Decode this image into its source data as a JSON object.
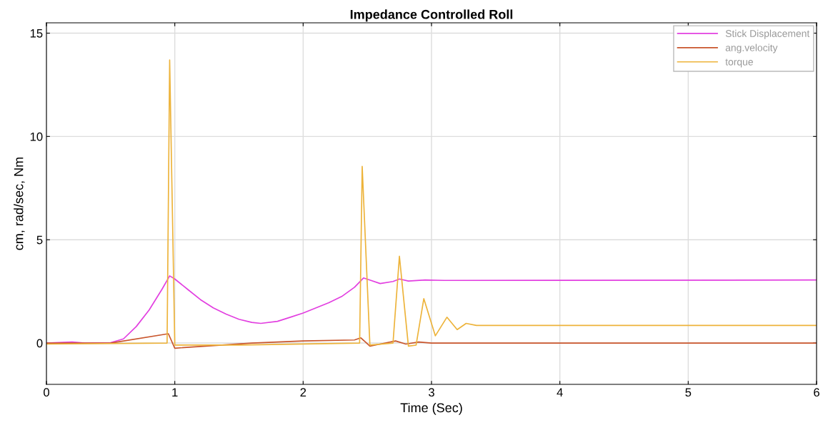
{
  "chart_data": {
    "type": "line",
    "title": "Impedance Controlled Roll",
    "xlabel": "Time (Sec)",
    "ylabel": "cm, rad/sec, Nm",
    "xlim": [
      0,
      6
    ],
    "ylim": [
      -2,
      15.5
    ],
    "xticks": [
      0,
      1,
      2,
      3,
      4,
      5,
      6
    ],
    "yticks": [
      0,
      5,
      10,
      15
    ],
    "grid": true,
    "legend": "top right",
    "series": [
      {
        "name": "Stick Displacement",
        "color": "#e23fe0",
        "x": [
          0,
          0.2,
          0.3,
          0.5,
          0.6,
          0.7,
          0.8,
          0.9,
          0.96,
          1.0,
          1.1,
          1.2,
          1.3,
          1.4,
          1.5,
          1.6,
          1.67,
          1.8,
          1.9,
          2.0,
          2.1,
          2.2,
          2.3,
          2.4,
          2.47,
          2.52,
          2.6,
          2.7,
          2.75,
          2.82,
          2.95,
          3.1,
          6
        ],
        "values": [
          0,
          0.05,
          0,
          0.02,
          0.2,
          0.8,
          1.6,
          2.6,
          3.25,
          3.1,
          2.6,
          2.1,
          1.7,
          1.4,
          1.15,
          1.0,
          0.95,
          1.05,
          1.25,
          1.45,
          1.7,
          1.95,
          2.25,
          2.7,
          3.15,
          3.05,
          2.88,
          2.98,
          3.1,
          3.0,
          3.05,
          3.03,
          3.05
        ]
      },
      {
        "name": "ang.velocity",
        "color": "#c9552c",
        "x": [
          0,
          0.5,
          0.95,
          1.0,
          1.6,
          2.0,
          2.4,
          2.45,
          2.52,
          2.6,
          2.72,
          2.8,
          2.9,
          3.0,
          6
        ],
        "values": [
          0,
          0,
          0.45,
          -0.25,
          0,
          0.1,
          0.15,
          0.25,
          -0.15,
          -0.05,
          0.1,
          -0.05,
          0.05,
          0,
          0
        ]
      },
      {
        "name": "torque",
        "color": "#edb33a",
        "x": [
          0,
          0.94,
          0.96,
          1.0,
          1.5,
          2.44,
          2.46,
          2.52,
          2.7,
          2.75,
          2.82,
          2.88,
          2.94,
          3.03,
          3.12,
          3.2,
          3.27,
          3.35,
          6
        ],
        "values": [
          -0.05,
          0,
          13.7,
          -0.1,
          -0.1,
          0,
          8.55,
          -0.1,
          0,
          4.2,
          -0.15,
          -0.1,
          2.15,
          0.35,
          1.25,
          0.65,
          0.95,
          0.85,
          0.85
        ]
      }
    ]
  }
}
